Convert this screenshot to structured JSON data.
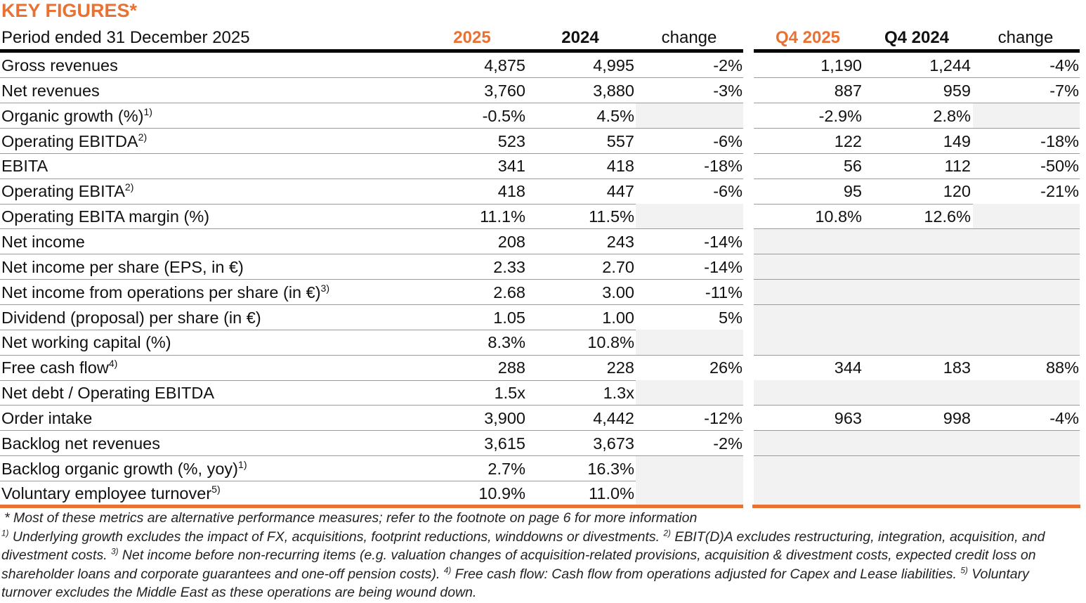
{
  "title": "KEY FIGURES*",
  "header": {
    "period": "Period ended 31 December 2025",
    "columns": [
      "2025",
      "2024",
      "change",
      "Q4 2025",
      "Q4 2024",
      "change"
    ]
  },
  "rows": [
    {
      "label": "Gross revenues",
      "values": [
        "4,875",
        "4,995",
        "-2%",
        "1,190",
        "1,244",
        "-4%"
      ]
    },
    {
      "label": "Net revenues",
      "values": [
        "3,760",
        "3,880",
        "-3%",
        "887",
        "959",
        "-7%"
      ]
    },
    {
      "label": "Organic growth (%)",
      "note": "1)",
      "values": [
        "-0.5%",
        "4.5%",
        null,
        "-2.9%",
        "2.8%",
        null
      ]
    },
    {
      "label": "Operating EBITDA",
      "note": "2)",
      "values": [
        "523",
        "557",
        "-6%",
        "122",
        "149",
        "-18%"
      ]
    },
    {
      "label": "EBITA",
      "values": [
        "341",
        "418",
        "-18%",
        "56",
        "112",
        "-50%"
      ]
    },
    {
      "label": "Operating EBITA",
      "note": "2)",
      "values": [
        "418",
        "447",
        "-6%",
        "95",
        "120",
        "-21%"
      ]
    },
    {
      "label": "Operating EBITA margin (%)",
      "values": [
        "11.1%",
        "11.5%",
        null,
        "10.8%",
        "12.6%",
        null
      ]
    },
    {
      "label": "Net income",
      "values": [
        "208",
        "243",
        "-14%",
        null,
        null,
        null
      ]
    },
    {
      "label": "Net income per share (EPS, in €)",
      "values": [
        "2.33",
        "2.70",
        "-14%",
        null,
        null,
        null
      ]
    },
    {
      "label": "Net income from operations per share (in €)",
      "note": "3)",
      "values": [
        "2.68",
        "3.00",
        "-11%",
        null,
        null,
        null
      ]
    },
    {
      "label": "Dividend (proposal) per share (in €)",
      "values": [
        "1.05",
        "1.00",
        "5%",
        null,
        null,
        null
      ]
    },
    {
      "label": "Net working capital (%)",
      "values": [
        "8.3%",
        "10.8%",
        null,
        null,
        null,
        null
      ]
    },
    {
      "label": "Free cash flow",
      "note": "4)",
      "values": [
        "288",
        "228",
        "26%",
        "344",
        "183",
        "88%"
      ]
    },
    {
      "label": "Net debt / Operating EBITDA",
      "values": [
        "1.5x",
        "1.3x",
        null,
        null,
        null,
        null
      ]
    },
    {
      "label": "Order intake",
      "values": [
        "3,900",
        "4,442",
        "-12%",
        "963",
        "998",
        "-4%"
      ]
    },
    {
      "label": "Backlog net revenues",
      "values": [
        "3,615",
        "3,673",
        "-2%",
        null,
        null,
        null
      ]
    },
    {
      "label": "Backlog organic growth (%, yoy)",
      "note": "1)",
      "values": [
        "2.7%",
        "16.3%",
        null,
        null,
        null,
        null
      ]
    },
    {
      "label": "Voluntary employee turnover",
      "note": "5)",
      "values": [
        "10.9%",
        "11.0%",
        null,
        null,
        null,
        null
      ]
    }
  ],
  "footnotes": {
    "general": "* Most of these metrics are alternative performance measures; refer to the footnote on page 6 for more information",
    "notes": [
      {
        "mark": "1)",
        "text": "Underlying growth excludes the impact of FX, acquisitions, footprint reductions, winddowns or divestments."
      },
      {
        "mark": "2)",
        "text": "EBIT(D)A excludes restructuring, integration, acquisition, and divestment costs."
      },
      {
        "mark": "3)",
        "text": "Net income before non-recurring items (e.g. valuation changes of acquisition-related provisions, acquisition & divestment costs, expected credit loss on shareholder loans and corporate guarantees and one-off pension costs)."
      },
      {
        "mark": "4)",
        "text": "Free cash flow: Cash flow from operations adjusted for Capex and Lease liabilities."
      },
      {
        "mark": "5)",
        "text": "Voluntary turnover excludes the Middle East as these operations are being wound down."
      }
    ]
  }
}
